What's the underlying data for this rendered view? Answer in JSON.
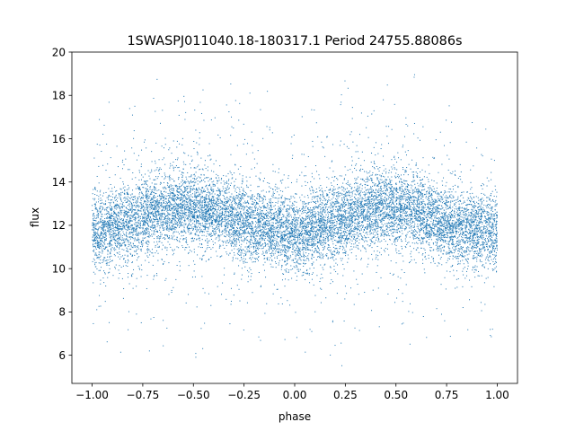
{
  "chart_data": {
    "type": "scatter",
    "title": "1SWASPJ011040.18-180317.1 Period 24755.88086s",
    "xlabel": "phase",
    "ylabel": "flux",
    "xlim": [
      -1.1,
      1.1
    ],
    "ylim": [
      4.7,
      20.0
    ],
    "x_ticks": [
      -1.0,
      -0.75,
      -0.5,
      -0.25,
      0.0,
      0.25,
      0.5,
      0.75,
      1.0
    ],
    "x_tick_labels": [
      "−1.00",
      "−0.75",
      "−0.50",
      "−0.25",
      "0.00",
      "0.25",
      "0.50",
      "0.75",
      "1.00"
    ],
    "y_ticks": [
      6,
      8,
      10,
      12,
      14,
      16,
      18,
      20
    ],
    "y_tick_labels": [
      "6",
      "8",
      "10",
      "12",
      "14",
      "16",
      "18",
      "20"
    ],
    "grid": false,
    "legend": "none",
    "marker_color": "#1f77b4",
    "series": [
      {
        "phase_range": [
          -1.0,
          1.0
        ],
        "flux_range": [
          5.4,
          19.4
        ],
        "trend": {
          "x": [
            -1.0,
            -0.9,
            -0.75,
            -0.6,
            -0.5,
            -0.4,
            -0.25,
            -0.1,
            0.0,
            0.1,
            0.25,
            0.4,
            0.5,
            0.6,
            0.75,
            0.9,
            1.0
          ],
          "y": [
            11.6,
            11.9,
            12.4,
            12.8,
            12.8,
            12.6,
            12.1,
            11.8,
            11.6,
            11.9,
            12.4,
            12.8,
            12.8,
            12.6,
            12.1,
            11.8,
            11.6
          ]
        }
      }
    ]
  }
}
